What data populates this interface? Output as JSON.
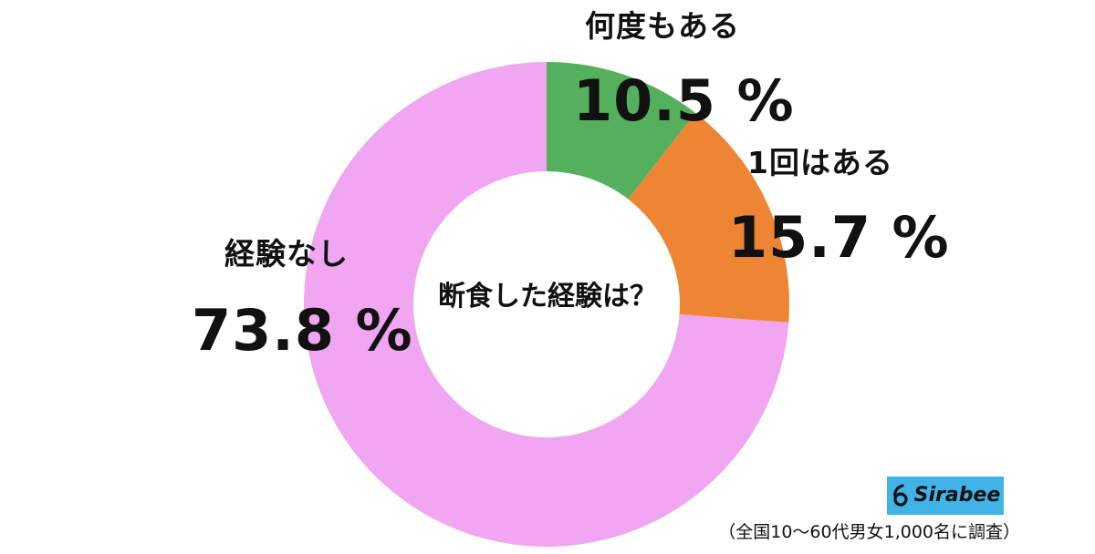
{
  "chart_data": {
    "type": "pie",
    "title": "断食した経験は？",
    "categories": [
      "何度もある",
      "1回はある",
      "経験なし"
    ],
    "values": [
      10.5,
      15.7,
      73.8
    ],
    "value_labels": [
      "10.5 %",
      "15.7 %",
      "73.8 %"
    ],
    "colors": [
      "#55b05e",
      "#ed8534",
      "#f0a6f0"
    ],
    "donut": true,
    "legend": "none"
  },
  "logo": {
    "text": "Sirabee",
    "background": "#41b3e6"
  },
  "footnote": "（全国10〜60代男女1,000名に調査）"
}
